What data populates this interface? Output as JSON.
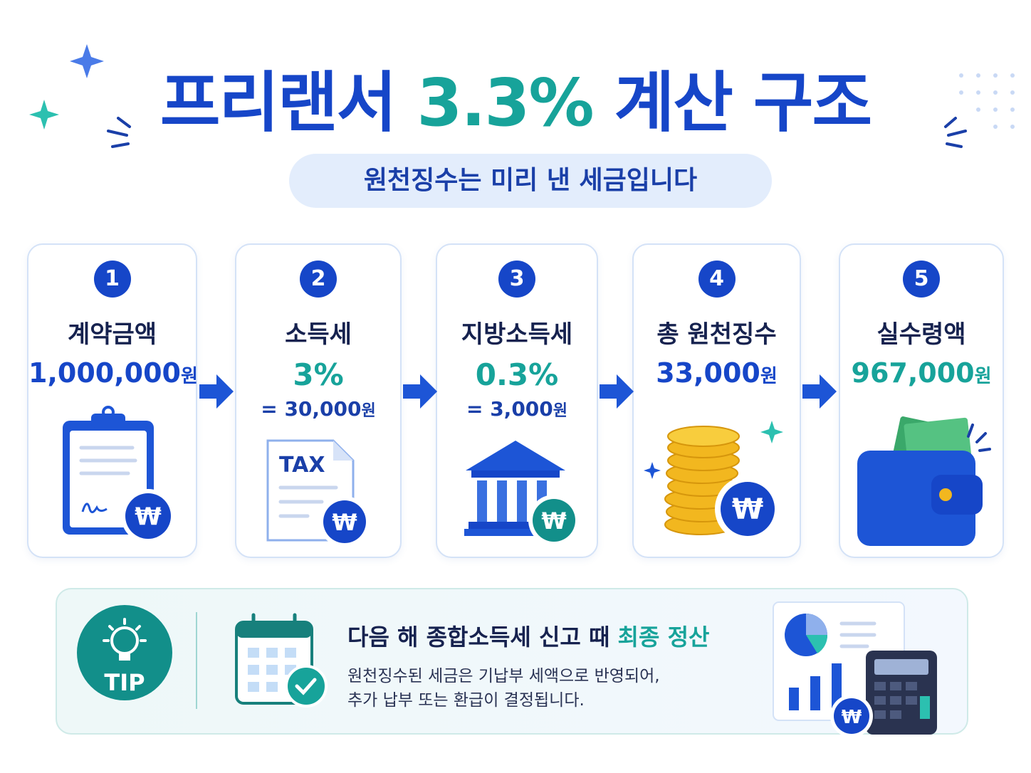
{
  "header": {
    "title": [
      "프리랜서",
      "3.3%",
      "계산 구조"
    ],
    "subtitle": "원천징수는 미리 낸 세금입니다"
  },
  "currency_symbol": "₩",
  "steps": [
    {
      "number": "1",
      "label": "계약금액",
      "amount": "1,000,000",
      "unit": "원"
    },
    {
      "number": "2",
      "label": "소득세",
      "rate": "3%",
      "amount": "= 30,000",
      "unit": "원",
      "icon_text": "TAX"
    },
    {
      "number": "3",
      "label": "지방소득세",
      "rate": "0.3%",
      "amount": "= 3,000",
      "unit": "원"
    },
    {
      "number": "4",
      "label": "총 원천징수",
      "amount": "33,000",
      "unit": "원"
    },
    {
      "number": "5",
      "label": "실수령액",
      "amount": "967,000",
      "unit": "원"
    }
  ],
  "tip": {
    "badge": "TIP",
    "heading": [
      "다음 해 종합소득세 신고 때",
      "최종 정산"
    ],
    "body": [
      "원천징수된 세금은 기납부 세액으로 반영되어,",
      "추가 납부 또는 환급이 결정됩니다."
    ]
  }
}
